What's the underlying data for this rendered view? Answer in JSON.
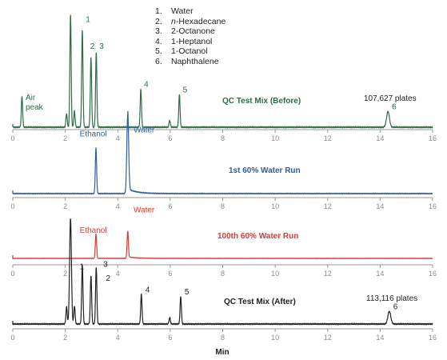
{
  "chart_data": {
    "type": "line",
    "legend": {
      "items": [
        {
          "num": "1.",
          "name": "Water",
          "italic_prefix": "",
          "rest": "Water"
        },
        {
          "num": "2.",
          "name": "n-Hexadecane",
          "italic_prefix": "n",
          "rest": "-Hexadecane"
        },
        {
          "num": "3.",
          "name": "2-Octanone",
          "italic_prefix": "",
          "rest": "2-Octanone"
        },
        {
          "num": "4.",
          "name": "1-Heptanol",
          "italic_prefix": "",
          "rest": "1-Heptanol"
        },
        {
          "num": "5.",
          "name": "1-Octanol",
          "italic_prefix": "",
          "rest": "1-Octanol"
        },
        {
          "num": "6.",
          "name": "Naphthalene",
          "italic_prefix": "",
          "rest": "Naphthalene"
        }
      ]
    },
    "xlabel": "Min",
    "xlim": [
      0,
      16
    ],
    "xticks": [
      0,
      2,
      4,
      6,
      8,
      10,
      12,
      14,
      16
    ],
    "panels": [
      {
        "title": "QC Test Mix (Before)",
        "color": "#2e6b45",
        "plates": "107,627 plates",
        "peaks": [
          {
            "t": 0.35,
            "h": 0.27
          },
          {
            "t": 2.05,
            "h": 0.12
          },
          {
            "t": 2.2,
            "h": 1.0
          },
          {
            "t": 2.35,
            "h": 0.14
          },
          {
            "t": 2.65,
            "h": 0.86
          },
          {
            "t": 2.98,
            "h": 0.62
          },
          {
            "t": 3.18,
            "h": 0.66
          },
          {
            "t": 4.88,
            "h": 0.34
          },
          {
            "t": 5.98,
            "h": 0.06
          },
          {
            "t": 6.35,
            "h": 0.29
          },
          {
            "t": 14.3,
            "h": 0.14
          }
        ],
        "labels": [
          {
            "text": "1",
            "t": 2.78,
            "h": 0.94
          },
          {
            "text": "2",
            "t": 2.95,
            "h": 0.7
          },
          {
            "text": "3",
            "t": 3.3,
            "h": 0.7
          },
          {
            "text": "4",
            "t": 5.0,
            "h": 0.36
          },
          {
            "text": "5",
            "t": 6.48,
            "h": 0.31
          },
          {
            "text": "6",
            "t": 14.45,
            "h": 0.16
          }
        ],
        "annotations": [
          "Air",
          "peak"
        ]
      },
      {
        "title": "1st 60% Water Run",
        "color": "#2f5f9e",
        "peaks": [
          {
            "t": 3.17,
            "h": 0.58
          },
          {
            "t": 4.38,
            "h": 1.0
          }
        ],
        "labels": [
          {
            "text": "Ethanol",
            "t": 2.55,
            "h": 0.73
          },
          {
            "text": "Water",
            "t": 4.6,
            "h": 0.78
          }
        ]
      },
      {
        "title": "100th 60% Water Run",
        "color": "#d83a36",
        "peaks": [
          {
            "t": 3.17,
            "h": 0.6
          },
          {
            "t": 4.38,
            "h": 0.66
          }
        ],
        "labels": [
          {
            "text": "Ethanol",
            "t": 2.55,
            "h": 0.64
          },
          {
            "text": "Water",
            "t": 4.6,
            "h": 1.15
          }
        ]
      },
      {
        "title": "QC Test Mix (After)",
        "color": "#222222",
        "plates": "113,116 plates",
        "peaks": [
          {
            "t": 2.05,
            "h": 0.16
          },
          {
            "t": 2.2,
            "h": 1.0
          },
          {
            "t": 2.35,
            "h": 0.17
          },
          {
            "t": 2.65,
            "h": 0.56
          },
          {
            "t": 2.98,
            "h": 0.46
          },
          {
            "t": 3.18,
            "h": 0.54
          },
          {
            "t": 4.9,
            "h": 0.28
          },
          {
            "t": 5.98,
            "h": 0.06
          },
          {
            "t": 6.4,
            "h": 0.26
          },
          {
            "t": 14.35,
            "h": 0.12
          }
        ],
        "labels": [
          {
            "text": "1",
            "t": 2.55,
            "h": 0.52
          },
          {
            "text": "2",
            "t": 3.55,
            "h": 0.41
          },
          {
            "text": "3",
            "t": 3.45,
            "h": 0.54
          },
          {
            "text": "4",
            "t": 5.05,
            "h": 0.3
          },
          {
            "text": "5",
            "t": 6.55,
            "h": 0.28
          },
          {
            "text": "6",
            "t": 14.5,
            "h": 0.14
          }
        ]
      }
    ]
  }
}
